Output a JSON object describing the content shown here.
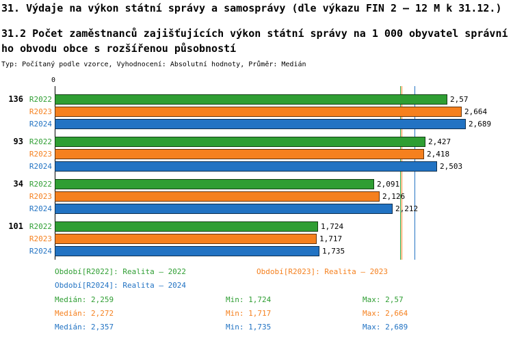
{
  "title": "31. Výdaje na výkon státní správy a samosprávy (dle výkazu FIN 2 – 12 M k 31.12.)",
  "subtitle": "31.2 Počet zaměstnanců zajišťujících výkon státní správy na 1 000 obyvatel správního obvodu obce s rozšířenou působností",
  "meta": "Typ: Počítaný podle vzorce, Vyhodnocení: Absolutní hodnoty, Průměr: Medián",
  "chart_data": {
    "type": "bar",
    "orientation": "horizontal",
    "title": "31.2 Počet zaměstnanců zajišťujících výkon státní správy na 1 000 obyvatel správního obvodu obce s rozšířenou působností",
    "origin_label": "0",
    "xlim": [
      0,
      3
    ],
    "grid": false,
    "legend_position": "bottom",
    "categories": [
      "136",
      "93",
      "34",
      "101"
    ],
    "series": [
      {
        "name": "R2022",
        "color": "#2f9e33",
        "values": [
          2.57,
          2.427,
          2.091,
          1.724
        ],
        "value_labels": [
          "2,57",
          "2,427",
          "2,091",
          "1,724"
        ],
        "median": 2.259
      },
      {
        "name": "R2023",
        "color": "#f5801e",
        "values": [
          2.664,
          2.418,
          2.126,
          1.717
        ],
        "value_labels": [
          "2,664",
          "2,418",
          "2,126",
          "1,717"
        ],
        "median": 2.272
      },
      {
        "name": "R2024",
        "color": "#2273c3",
        "values": [
          2.689,
          2.503,
          2.212,
          1.735
        ],
        "value_labels": [
          "2,689",
          "2,503",
          "2,212",
          "1,735"
        ],
        "median": 2.357
      }
    ]
  },
  "legend": [
    {
      "text": "Období[R2022]: Realita – 2022"
    },
    {
      "text": "Období[R2023]: Realita – 2023"
    },
    {
      "text": "Období[R2024]: Realita – 2024"
    }
  ],
  "stats": [
    {
      "median": "Medián: 2,259",
      "min": "Min: 1,724",
      "max": "Max: 2,57"
    },
    {
      "median": "Medián: 2,272",
      "min": "Min: 1,717",
      "max": "Max: 2,664"
    },
    {
      "median": "Medián: 2,357",
      "min": "Min: 1,735",
      "max": "Max: 2,689"
    }
  ]
}
